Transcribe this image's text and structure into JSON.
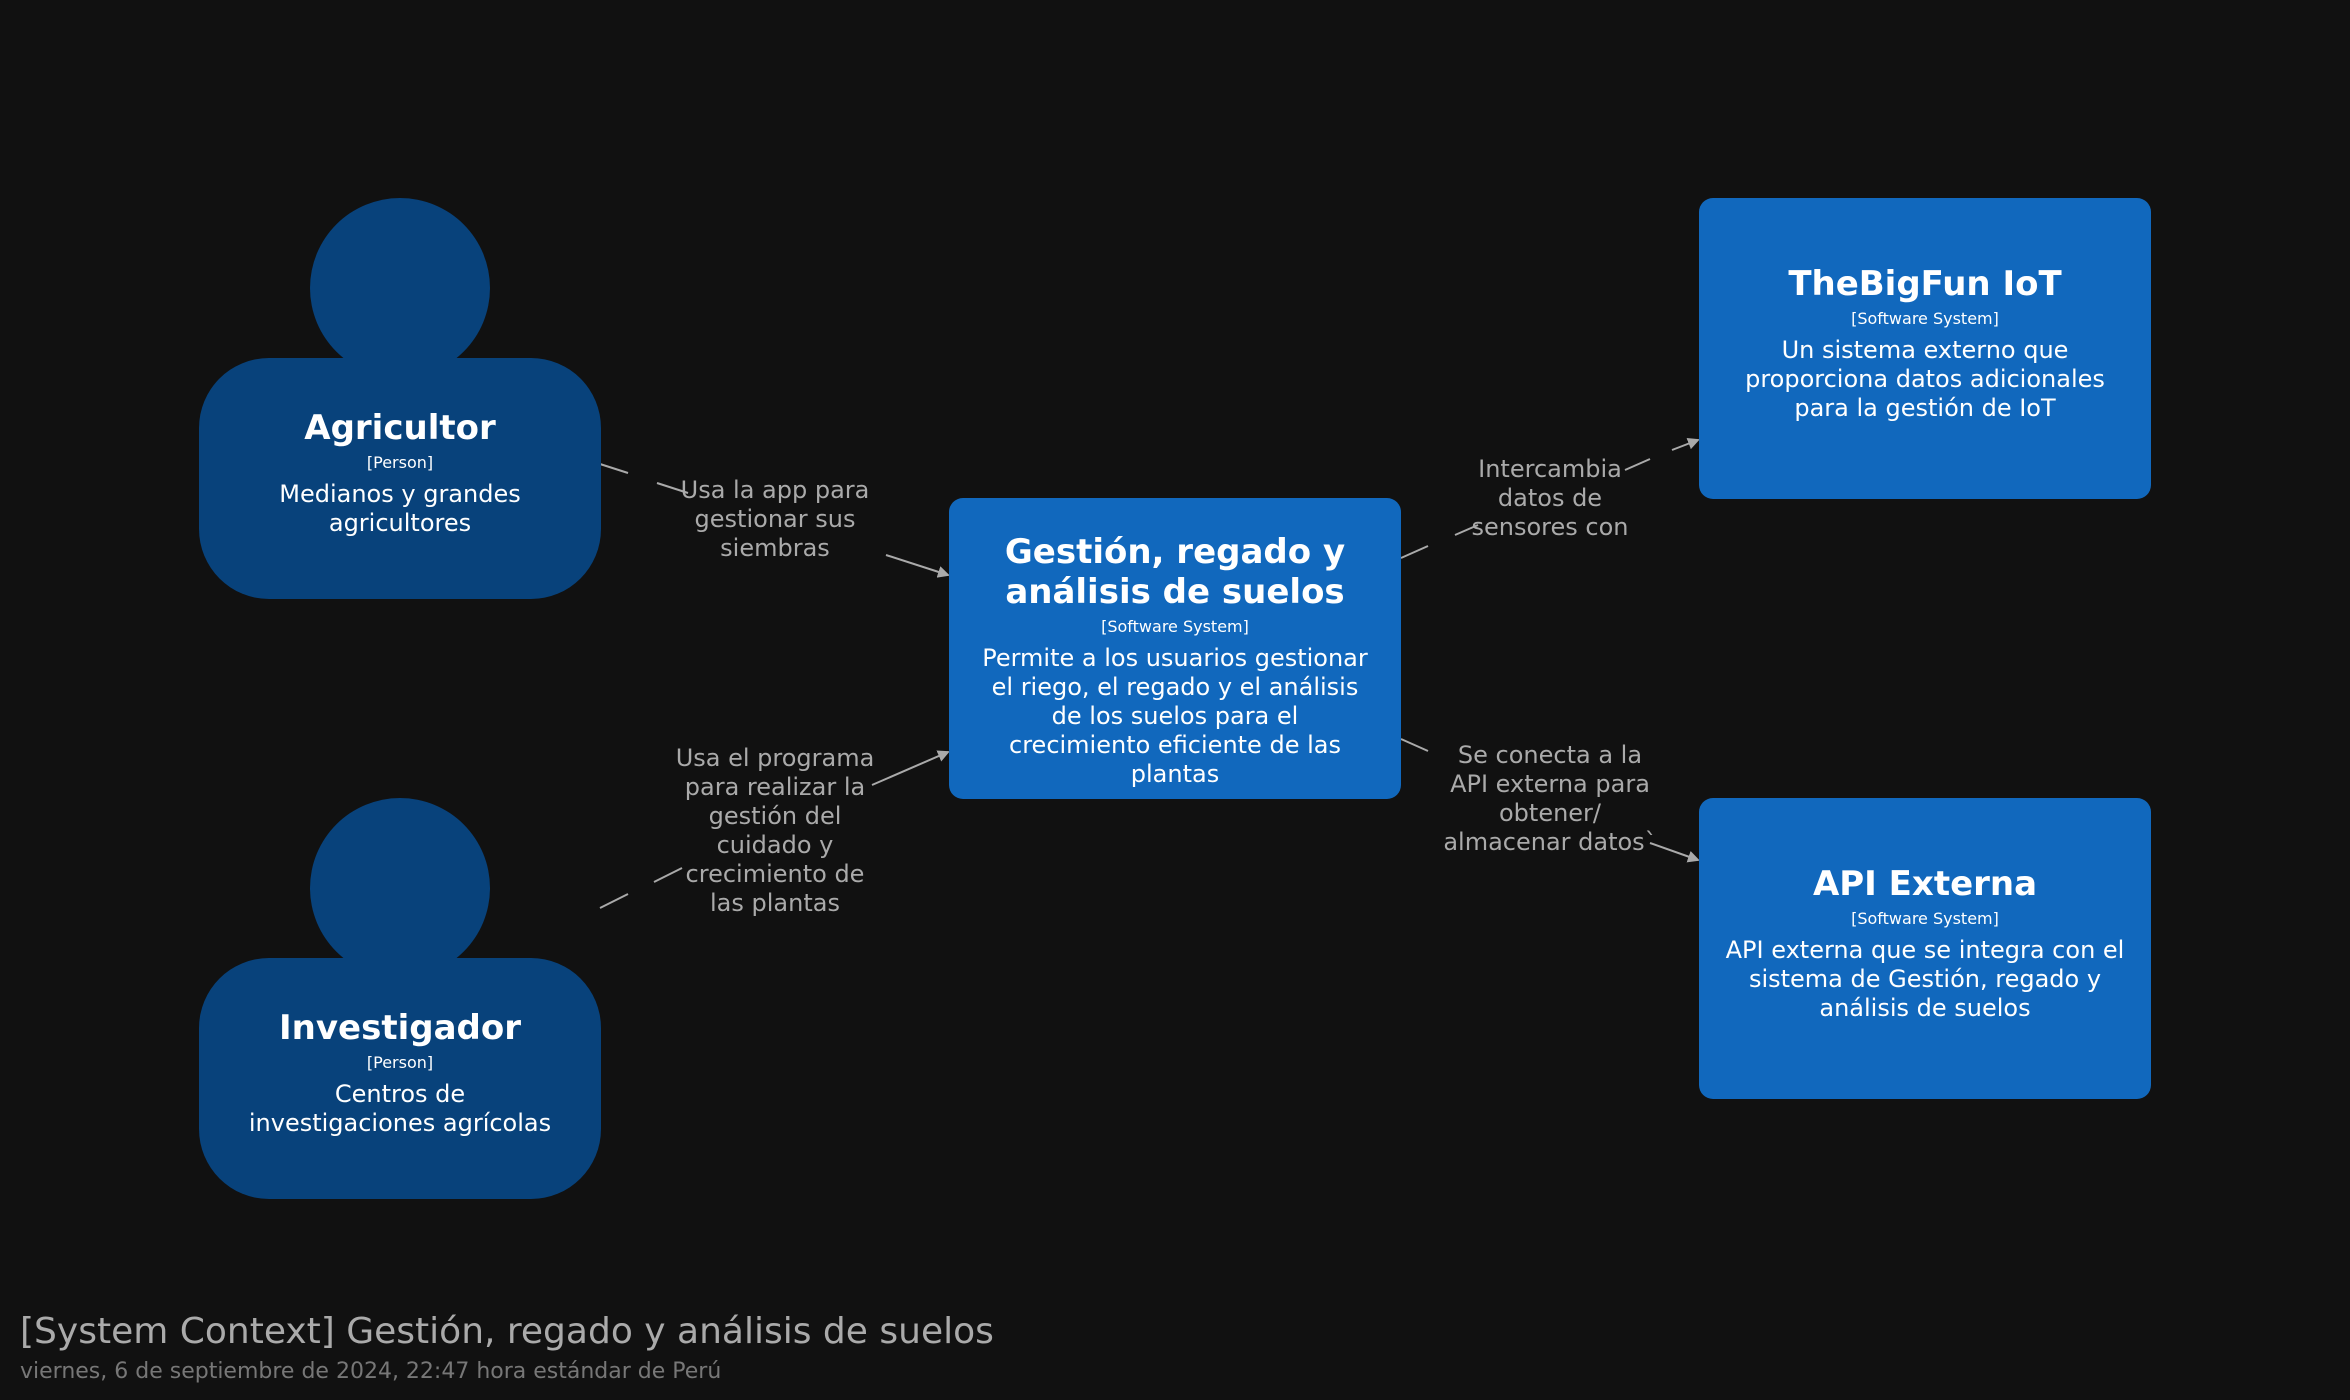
{
  "colors": {
    "background": "#111111",
    "person": "#08427b",
    "system": "#1168bd",
    "relationship": "#aaaaaa"
  },
  "persons": {
    "agricultor": {
      "name": "Agricultor",
      "type": "[Person]",
      "description": "Medianos y grandes agricultores"
    },
    "investigador": {
      "name": "Investigador",
      "type": "[Person]",
      "description": "Centros de investigaciones agrícolas"
    }
  },
  "systems": {
    "main": {
      "name": "Gestión, regado y análisis de suelos",
      "type": "[Software System]",
      "description": "Permite a los usuarios gestionar el riego, el regado y el análisis de los suelos para el crecimiento eficiente de las plantas"
    },
    "iot": {
      "name": "TheBigFun IoT",
      "type": "[Software System]",
      "description": "Un sistema externo que proporciona datos adicionales para la gestión de IoT"
    },
    "api": {
      "name": "API Externa",
      "type": "[Software System]",
      "description": "API externa que se integra con el sistema de Gestión, regado y análisis de suelos"
    }
  },
  "relationships": {
    "agricultor_to_main": "Usa la app para\ngestionar sus\nsiembras",
    "investigador_to_main": "Usa el programa\npara realizar la\ngestión del\ncuidado y\ncrecimiento de\nlas plantas",
    "main_to_iot": "Intercambia\ndatos de\nsensores con",
    "main_to_api": "Se conecta a la\nAPI externa para\nobtener/\nalmacenar datos`"
  },
  "footer": {
    "title": "[System Context] Gestión, regado y análisis de suelos",
    "subtitle": "viernes, 6 de septiembre de 2024, 22:47 hora estándar de Perú"
  }
}
